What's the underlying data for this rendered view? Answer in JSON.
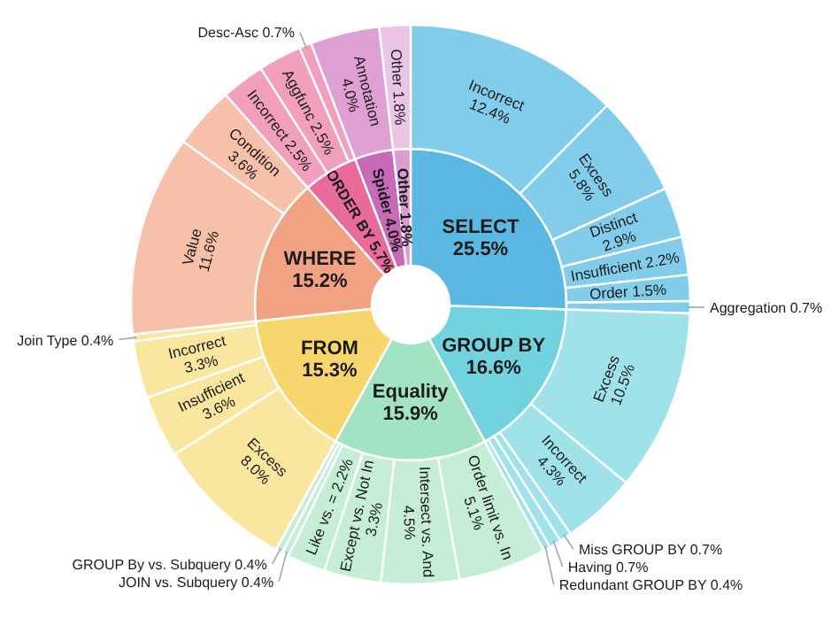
{
  "chart_data": [
    {
      "type": "donut",
      "categories": [
        "SELECT",
        "GROUP BY",
        "Equality",
        "FROM",
        "WHERE",
        "ORDER BY",
        "Spider",
        "Other"
      ],
      "values": [
        25.5,
        16.6,
        15.9,
        15.3,
        15.2,
        5.7,
        4.0,
        1.8
      ],
      "value_labels": [
        "25.5%",
        "16.6%",
        "15.9%",
        "15.3%",
        "15.2%",
        "5.7%",
        "4.0%",
        "1.8%"
      ],
      "colors": [
        "#5bb8e2",
        "#72d3df",
        "#a2e3c4",
        "#f8d66e",
        "#f1a283",
        "#e96b9c",
        "#c96ab9",
        "#dc9bd2"
      ]
    },
    {
      "type": "donut",
      "categories": [
        "Incorrect",
        "Excess",
        "Distinct",
        "Insufficient",
        "Order",
        "Aggregation",
        "Excess",
        "Incorrect",
        "Miss GROUP BY",
        "Having",
        "Redundant GROUP BY",
        "Order limit vs. In",
        "Intersect vs. And",
        "Except vs. Not In",
        "Like vs. =",
        "JOIN vs. Subquery",
        "GROUP By vs. Subquery",
        "Excess",
        "Insufficient",
        "Incorrect",
        "Join Type",
        "Value",
        "Condition",
        "Incorrect",
        "Aggfunc",
        "Desc-Asc",
        "Annotation",
        "Other"
      ],
      "values": [
        12.4,
        5.8,
        2.9,
        2.2,
        1.5,
        0.7,
        10.5,
        4.3,
        0.7,
        0.7,
        0.4,
        5.1,
        4.5,
        3.3,
        2.2,
        0.4,
        0.4,
        8.0,
        3.6,
        3.3,
        0.4,
        11.6,
        3.6,
        2.5,
        2.5,
        0.7,
        4.0,
        1.8
      ],
      "value_labels": [
        "12.4%",
        "5.8%",
        "2.9%",
        "2.2%",
        "1.5%",
        "0.7%",
        "10.5%",
        "4.3%",
        "0.7%",
        "0.7%",
        "0.4%",
        "5.1%",
        "4.5%",
        "3.3%",
        "2.2%",
        "0.4%",
        "0.4%",
        "8.0%",
        "3.6%",
        "3.3%",
        "0.4%",
        "11.6%",
        "3.6%",
        "2.5%",
        "2.5%",
        "0.7%",
        "4.0%",
        "1.8%"
      ],
      "colors": [
        "#82cdec",
        "#82cdec",
        "#82cdec",
        "#82cdec",
        "#82cdec",
        "#82cdec",
        "#a0e2ea",
        "#a0e2ea",
        "#a0e2ea",
        "#a0e2ea",
        "#a0e2ea",
        "#c6eed7",
        "#c6eed7",
        "#c6eed7",
        "#c6eed7",
        "#c6eed7",
        "#c6eed7",
        "#fbe6a0",
        "#fbe6a0",
        "#fbe6a0",
        "#fbe6a0",
        "#f7c0a8",
        "#f7c0a8",
        "#f29ebd",
        "#f29ebd",
        "#f29ebd",
        "#dfa0d3",
        "#ecc4e6"
      ]
    }
  ]
}
